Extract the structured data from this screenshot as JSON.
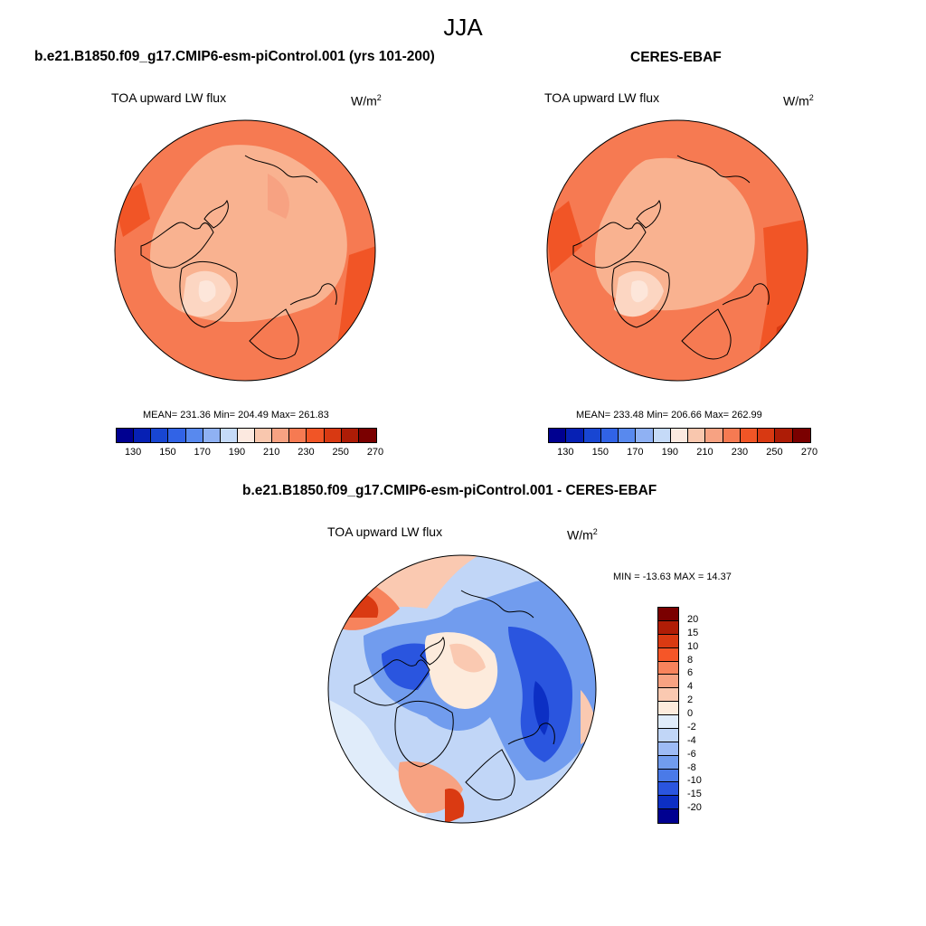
{
  "title": "JJA",
  "colors": {
    "seq": [
      "#000090",
      "#0620b4",
      "#1846d2",
      "#3163e6",
      "#5889ee",
      "#8fb1f3",
      "#c5daf8",
      "#fce9e0",
      "#f9c7ae",
      "#f7a282",
      "#f67a52",
      "#f15526",
      "#d83912",
      "#ad1c06",
      "#7a0000"
    ],
    "div": [
      "#7a0000",
      "#b01d06",
      "#da3a12",
      "#f55628",
      "#f7835c",
      "#f7a282",
      "#fac9b1",
      "#fdebdc",
      "#e0ecfa",
      "#c1d6f7",
      "#9dbbf5",
      "#719cee",
      "#4a7ae8",
      "#2a55df",
      "#0c2fc4",
      "#000090"
    ],
    "coast": "#000000",
    "arctic_model": "#fbb695",
    "arctic_obs": "#fbae8c"
  },
  "panels": [
    {
      "id": "model",
      "heading": "b.e21.B1850.f09_g17.CMIP6-esm-piControl.001 (yrs 101-200)",
      "variable": "TOA upward LW flux",
      "units": "W/m",
      "units_exp": "2",
      "stats": "MEAN= 231.36  Min= 204.49  Max= 261.83",
      "mean": 231.36,
      "min": 204.49,
      "max": 261.83
    },
    {
      "id": "obs",
      "heading": "CERES-EBAF",
      "variable": "TOA upward LW flux",
      "units": "W/m",
      "units_exp": "2",
      "stats": "MEAN= 233.48  Min= 206.66  Max= 262.99",
      "mean": 233.48,
      "min": 206.66,
      "max": 262.99
    }
  ],
  "diff": {
    "heading": "b.e21.B1850.f09_g17.CMIP6-esm-piControl.001 - CERES-EBAF",
    "variable": "TOA upward LW flux",
    "units": "W/m",
    "units_exp": "2",
    "stats": "MIN = -13.63 MAX =  14.37",
    "min": -13.63,
    "max": 14.37
  },
  "colorbar_seq": {
    "levels": [
      130,
      140,
      150,
      160,
      170,
      180,
      190,
      200,
      210,
      220,
      230,
      240,
      250,
      260,
      270
    ],
    "tick_labels": [
      "130",
      "150",
      "170",
      "190",
      "210",
      "230",
      "250",
      "270"
    ]
  },
  "colorbar_div": {
    "tick_labels": [
      "20",
      "15",
      "10",
      "8",
      "6",
      "4",
      "2",
      "0",
      "-2",
      "-4",
      "-6",
      "-8",
      "-10",
      "-15",
      "-20"
    ]
  },
  "chart_data": [
    {
      "type": "heatmap",
      "title": "TOA upward LW flux",
      "subtitle": "b.e21.B1850.f09_g17.CMIP6-esm-piControl.001 (yrs 101-200)",
      "units": "W/m2",
      "projection": "north polar stereographic",
      "mean": 231.36,
      "min": 204.49,
      "max": 261.83,
      "levels": [
        130,
        140,
        150,
        160,
        170,
        180,
        190,
        200,
        210,
        220,
        230,
        240,
        250,
        260,
        270
      ]
    },
    {
      "type": "heatmap",
      "title": "TOA upward LW flux",
      "subtitle": "CERES-EBAF",
      "units": "W/m2",
      "projection": "north polar stereographic",
      "mean": 233.48,
      "min": 206.66,
      "max": 262.99,
      "levels": [
        130,
        140,
        150,
        160,
        170,
        180,
        190,
        200,
        210,
        220,
        230,
        240,
        250,
        260,
        270
      ]
    },
    {
      "type": "heatmap",
      "title": "TOA upward LW flux",
      "subtitle": "b.e21.B1850.f09_g17.CMIP6-esm-piControl.001 - CERES-EBAF",
      "units": "W/m2",
      "projection": "north polar stereographic",
      "min": -13.63,
      "max": 14.37,
      "levels": [
        -20,
        -15,
        -10,
        -8,
        -6,
        -4,
        -2,
        0,
        2,
        4,
        6,
        8,
        10,
        15,
        20
      ]
    }
  ]
}
